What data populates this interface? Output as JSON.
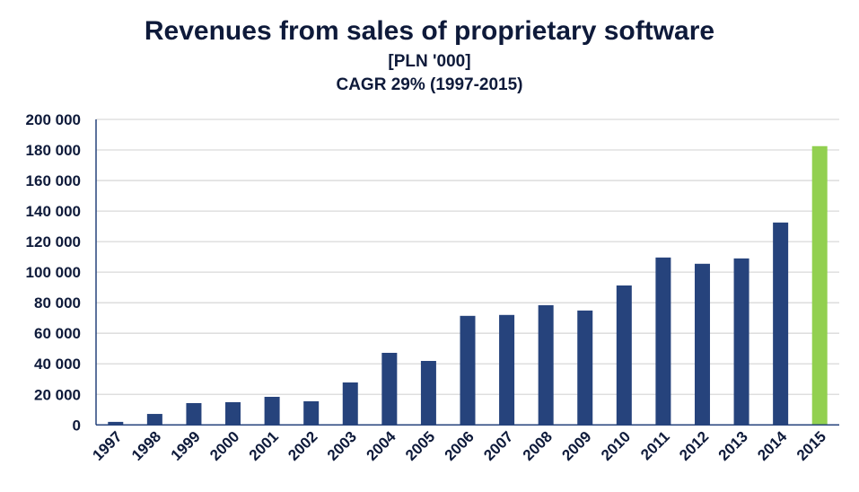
{
  "chart_data": {
    "type": "bar",
    "title": "Revenues from sales of proprietary software",
    "subtitle": "[PLN '000]",
    "annotation": "CAGR 29% (1997-2015)",
    "xlabel": "",
    "ylabel": "",
    "ylim": [
      0,
      200000
    ],
    "yticks": [
      0,
      20000,
      40000,
      60000,
      80000,
      100000,
      120000,
      140000,
      160000,
      180000,
      200000
    ],
    "ytick_labels": [
      "0",
      "20 000",
      "40 000",
      "60 000",
      "80 000",
      "100 000",
      "120 000",
      "140 000",
      "160 000",
      "180 000",
      "200 000"
    ],
    "grid": true,
    "categories": [
      "1997",
      "1998",
      "1999",
      "2000",
      "2001",
      "2002",
      "2003",
      "2004",
      "2005",
      "2006",
      "2007",
      "2008",
      "2009",
      "2010",
      "2011",
      "2012",
      "2013",
      "2014",
      "2015"
    ],
    "values": [
      2000,
      7200,
      14300,
      14900,
      18400,
      15500,
      27800,
      47200,
      41900,
      71400,
      72000,
      78400,
      74900,
      91300,
      109600,
      105500,
      109000,
      132500,
      182500
    ],
    "colors": {
      "default": "#26437c",
      "highlight": "#92d050",
      "grid": "#d9d9d9",
      "axis": "#26437c"
    },
    "highlight_category": "2015"
  }
}
